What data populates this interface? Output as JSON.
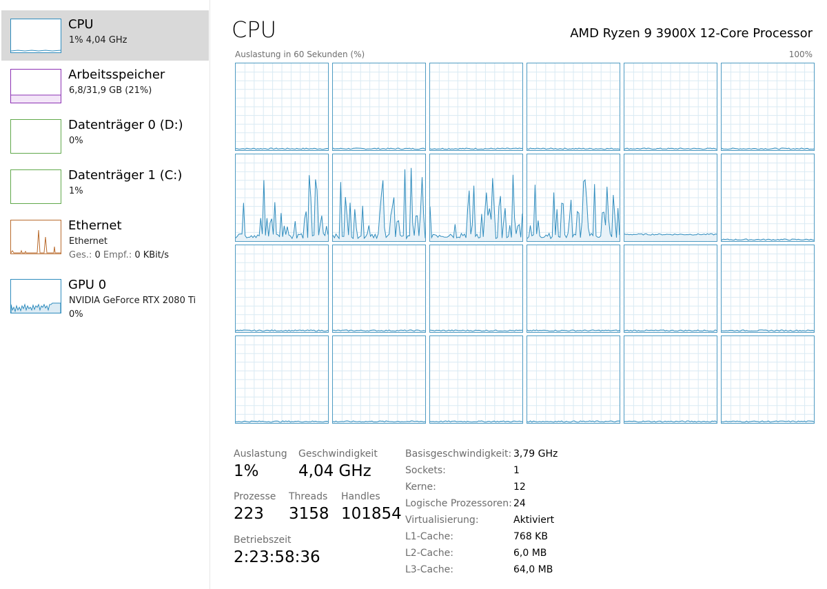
{
  "sidebar": {
    "items": [
      {
        "title": "CPU",
        "sub": "1%  4,04 GHz",
        "color": "#2d8bbd",
        "selected": true
      },
      {
        "title": "Arbeitsspeicher",
        "sub": "6,8/31,9 GB (21%)",
        "color": "#8b2fb3"
      },
      {
        "title": "Datenträger 0 (D:)",
        "sub": "0%",
        "color": "#5fa84a"
      },
      {
        "title": "Datenträger 1 (C:)",
        "sub": "1%",
        "color": "#5fa84a"
      },
      {
        "title": "Ethernet",
        "sub": "Ethernet",
        "sub2_send_label": "Ges.:",
        "sub2_send_val": "0",
        "sub2_recv_label": "Empf.:",
        "sub2_recv_val": "0 KBit/s",
        "color": "#b86a2c"
      },
      {
        "title": "GPU 0",
        "sub": "NVIDIA GeForce RTX 2080 Ti",
        "sub3": "0%",
        "color": "#2d8bbd"
      }
    ]
  },
  "header": {
    "title": "CPU",
    "processor": "AMD Ryzen 9 3900X 12-Core Processor",
    "util_label": "Auslastung in 60 Sekunden (%)",
    "util_max": "100%"
  },
  "colors": {
    "graph_line": "#2d8bbd",
    "graph_fill": "#e8f2f8",
    "grid": "#d9eaf3"
  },
  "stats": {
    "auslastung_label": "Auslastung",
    "auslastung_value": "1%",
    "geschwindigkeit_label": "Geschwindigkeit",
    "geschwindigkeit_value": "4,04 GHz",
    "prozesse_label": "Prozesse",
    "prozesse_value": "223",
    "threads_label": "Threads",
    "threads_value": "3158",
    "handles_label": "Handles",
    "handles_value": "101854",
    "betriebszeit_label": "Betriebszeit",
    "betriebszeit_value": "2:23:58:36"
  },
  "specs": [
    {
      "key": "Basisgeschwindigkeit:",
      "value": "3,79 GHz"
    },
    {
      "key": "Sockets:",
      "value": "1"
    },
    {
      "key": "Kerne:",
      "value": "12"
    },
    {
      "key": "Logische Prozessoren:",
      "value": "24"
    },
    {
      "key": "Virtualisierung:",
      "value": "Aktiviert"
    },
    {
      "key": "L1-Cache:",
      "value": "768 KB"
    },
    {
      "key": "L2-Cache:",
      "value": "6,0 MB"
    },
    {
      "key": "L3-Cache:",
      "value": "64,0 MB"
    }
  ]
}
